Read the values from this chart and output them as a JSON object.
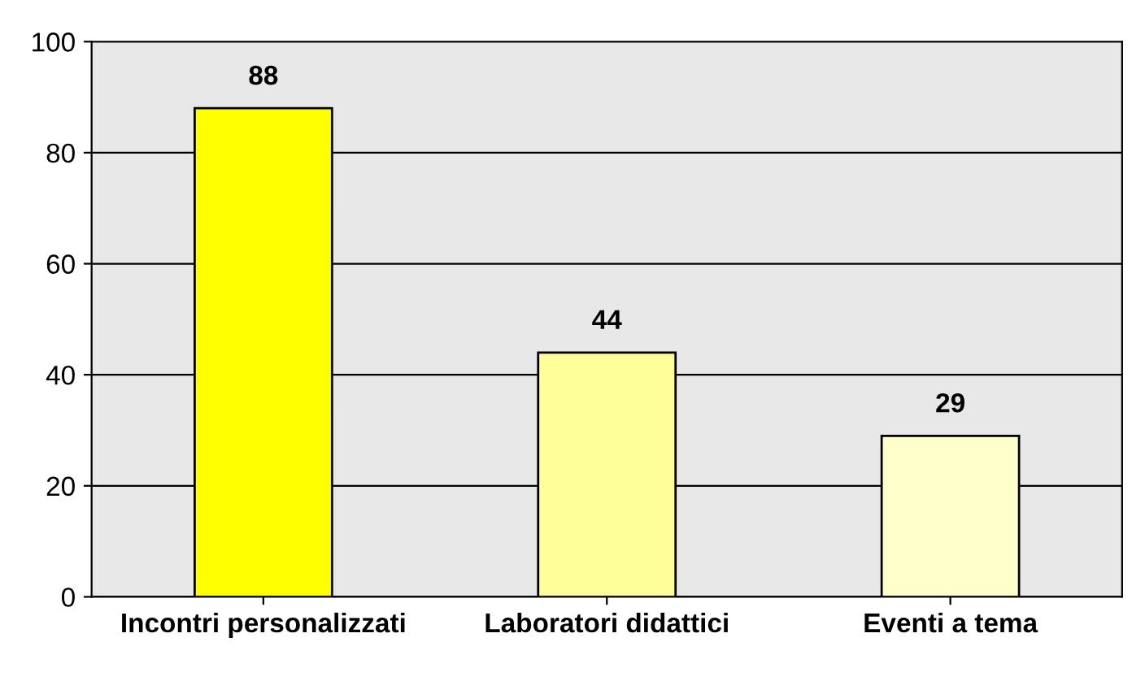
{
  "chart_data": {
    "type": "bar",
    "categories": [
      "Incontri personalizzati",
      "Laboratori didattici",
      "Eventi a tema"
    ],
    "values": [
      88,
      44,
      29
    ],
    "colors": [
      "#ffff00",
      "#ffff99",
      "#ffffcc"
    ],
    "ylim": [
      0,
      100
    ],
    "yticks": [
      0,
      20,
      40,
      60,
      80,
      100
    ],
    "grid": "y",
    "data_labels": true
  }
}
